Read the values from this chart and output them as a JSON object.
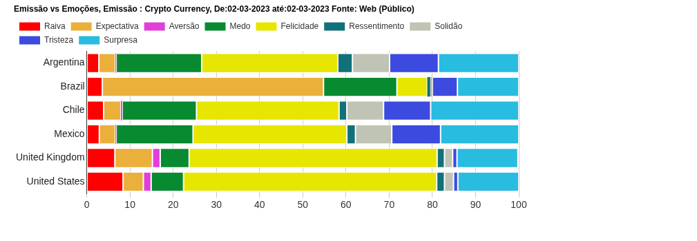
{
  "chart_data": {
    "type": "bar",
    "orientation": "horizontal",
    "stacked": true,
    "title": "Emissão vs Emoções, Emissão : Crypto Currency, De:02-03-2023 até:02-03-2023 Fonte: Web (Público)",
    "categories": [
      "Argentina",
      "Brazil",
      "Chile",
      "Mexico",
      "United Kingdom",
      "United States"
    ],
    "series": [
      {
        "name": "Raiva",
        "color": "#ff0000",
        "values": [
          2.8,
          3.6,
          3.9,
          2.9,
          6.5,
          8.4
        ]
      },
      {
        "name": "Expectativa",
        "color": "#ebaf3b",
        "values": [
          3.8,
          51.2,
          4.0,
          3.7,
          8.7,
          4.7
        ]
      },
      {
        "name": "Aversão",
        "color": "#e040d8",
        "values": [
          0.2,
          0,
          0.3,
          0.2,
          1.8,
          1.8
        ]
      },
      {
        "name": "Medo",
        "color": "#088a30",
        "values": [
          19.8,
          17.0,
          17.2,
          17.8,
          6.7,
          7.5
        ]
      },
      {
        "name": "Felicidade",
        "color": "#e6e600",
        "values": [
          31.5,
          7.0,
          33.0,
          35.6,
          57.4,
          58.6
        ]
      },
      {
        "name": "Ressentimento",
        "color": "#12707a",
        "values": [
          3.4,
          0.7,
          1.8,
          2.0,
          1.7,
          1.8
        ]
      },
      {
        "name": "Solidão",
        "color": "#c0c4b4",
        "values": [
          8.6,
          0.5,
          8.5,
          8.4,
          1.9,
          2.1
        ]
      },
      {
        "name": "Tristeza",
        "color": "#3c4ae0",
        "values": [
          11.3,
          5.8,
          10.9,
          11.3,
          1.0,
          1.0
        ]
      },
      {
        "name": "Surpresa",
        "color": "#28bce0",
        "values": [
          18.6,
          14.2,
          20.4,
          18.1,
          14.1,
          14.1
        ]
      }
    ],
    "xlim": [
      0,
      100
    ],
    "xticks": [
      0,
      10,
      20,
      30,
      40,
      50,
      60,
      70,
      80,
      90,
      100
    ],
    "grid": "x",
    "legend": "top"
  }
}
